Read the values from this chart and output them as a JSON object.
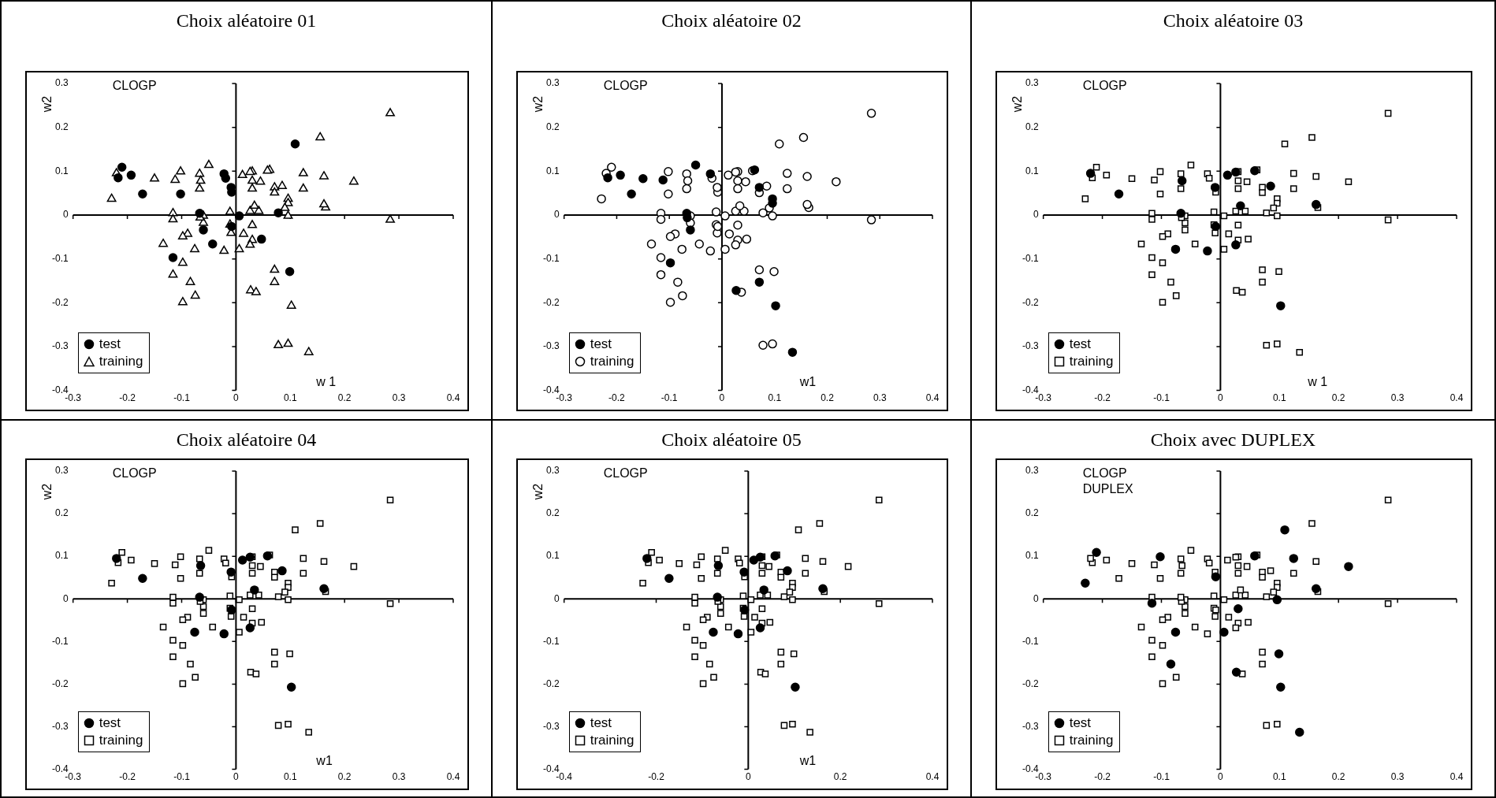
{
  "chart_data": [
    {
      "type": "scatter",
      "title": "Choix aléatoire 01",
      "xlabel": "w 1",
      "ylabel": "w2",
      "annotations": [
        "CLOGP"
      ],
      "legend": "bottom left",
      "xlim": [
        -0.3,
        0.4
      ],
      "xticks": [
        -0.3,
        -0.2,
        -0.1,
        0,
        0.1,
        0.2,
        0.3,
        0.4
      ],
      "ylim": [
        -0.4,
        0.3
      ],
      "yticks": [
        -0.4,
        -0.3,
        -0.2,
        -0.1,
        0,
        0.1,
        0.2,
        0.3
      ],
      "series": [
        {
          "name": "test",
          "marker": "circle",
          "color": "#000000",
          "x": [
            -0.217,
            -0.21,
            -0.193,
            -0.102,
            -0.022,
            -0.019,
            -0.008,
            0.109,
            0.078,
            -0.06,
            0.006,
            0.047,
            -0.043,
            -0.116,
            0.099,
            -0.172,
            -0.067,
            -0.009,
            -0.008
          ],
          "values": [
            0.085,
            0.109,
            0.091,
            0.048,
            0.094,
            0.084,
            0.052,
            0.162,
            0.005,
            -0.034,
            -0.002,
            -0.055,
            -0.066,
            -0.097,
            -0.129,
            0.048,
            0.004,
            0.063,
            -0.026
          ]
        },
        {
          "name": "training",
          "marker": "triangle",
          "color": "#ffffff",
          "x": [
            -0.229,
            -0.15,
            -0.112,
            -0.102,
            -0.067,
            -0.067,
            -0.05,
            0.03,
            0.03,
            0.03,
            0.045,
            0.062,
            0.071,
            0.071,
            0.124,
            0.124,
            0.155,
            0.162,
            0.217,
            0.284,
            0.284,
            0.096,
            0.096,
            0.09,
            0.096,
            0.165,
            0.042,
            0.026,
            -0.116,
            -0.116,
            -0.06,
            -0.06,
            -0.011,
            -0.011,
            -0.009,
            0.014,
            0.03,
            0.03,
            -0.089,
            -0.098,
            -0.134,
            0.006,
            -0.098,
            -0.116,
            -0.084,
            -0.075,
            -0.098,
            0.071,
            0.071,
            0.027,
            0.037,
            0.078,
            0.096,
            0.134,
            -0.066,
            -0.22,
            -0.065,
            0.012,
            0.026,
            0.058,
            0.085,
            0.034,
            0.162,
            -0.076,
            -0.022,
            0.026,
            0.102
          ],
          "values": [
            0.037,
            0.083,
            0.08,
            0.099,
            0.094,
            0.06,
            0.114,
            0.099,
            0.078,
            0.06,
            0.076,
            0.103,
            0.063,
            0.051,
            0.095,
            0.06,
            0.177,
            0.088,
            0.076,
            0.232,
            -0.011,
            0.037,
            0.027,
            0.016,
            -0.002,
            0.017,
            0.009,
            0.009,
            0.004,
            -0.01,
            -0.002,
            -0.018,
            0.007,
            -0.022,
            -0.041,
            -0.043,
            -0.023,
            -0.057,
            -0.043,
            -0.049,
            -0.066,
            -0.078,
            -0.109,
            -0.136,
            -0.153,
            -0.184,
            -0.199,
            -0.125,
            -0.153,
            -0.172,
            -0.176,
            -0.297,
            -0.294,
            -0.313,
            -0.006,
            0.095,
            0.078,
            0.091,
            0.098,
            0.101,
            0.066,
            0.021,
            0.024,
            -0.078,
            -0.082,
            -0.068,
            -0.207
          ]
        }
      ]
    },
    {
      "type": "scatter",
      "title": "Choix aléatoire 02",
      "xlabel": "w1",
      "ylabel": "w2",
      "annotations": [
        "CLOGP"
      ],
      "legend": "bottom left",
      "xlim": [
        -0.3,
        0.4
      ],
      "xticks": [
        -0.3,
        -0.2,
        -0.1,
        0,
        0.1,
        0.2,
        0.3,
        0.4
      ],
      "ylim": [
        -0.4,
        0.3
      ],
      "yticks": [
        -0.4,
        -0.3,
        -0.2,
        -0.1,
        0,
        0.1,
        0.2,
        0.3
      ],
      "series": [
        {
          "name": "test",
          "marker": "circle",
          "color": "#000000",
          "x": [
            -0.217,
            -0.193,
            -0.15,
            -0.112,
            -0.05,
            -0.022,
            0.062,
            0.071,
            0.096,
            0.096,
            -0.06,
            -0.098,
            0.071,
            0.027,
            0.134,
            -0.066,
            -0.172,
            -0.067,
            0.102
          ],
          "values": [
            0.085,
            0.091,
            0.083,
            0.08,
            0.114,
            0.094,
            0.103,
            0.063,
            0.037,
            0.027,
            -0.034,
            -0.109,
            -0.153,
            -0.172,
            -0.313,
            -0.006,
            0.048,
            0.004,
            -0.207
          ]
        },
        {
          "name": "training",
          "marker": "circle",
          "color": "#ffffff",
          "x": [
            -0.229,
            -0.21,
            -0.102,
            -0.102,
            -0.067,
            -0.067,
            -0.019,
            -0.008,
            0.03,
            0.03,
            0.03,
            0.045,
            0.071,
            0.109,
            0.124,
            0.124,
            0.155,
            0.162,
            0.217,
            0.284,
            0.284,
            0.09,
            0.078,
            0.096,
            0.165,
            0.042,
            0.026,
            -0.116,
            -0.116,
            -0.06,
            -0.06,
            -0.011,
            0.006,
            -0.011,
            -0.009,
            0.014,
            0.03,
            0.047,
            0.03,
            -0.089,
            -0.098,
            -0.134,
            -0.043,
            0.006,
            -0.116,
            -0.116,
            -0.084,
            -0.075,
            -0.098,
            0.071,
            0.099,
            0.037,
            0.078,
            0.096,
            -0.22,
            -0.065,
            -0.009,
            -0.008,
            0.012,
            0.026,
            0.058,
            0.085,
            0.034,
            0.162,
            -0.076,
            -0.022,
            0.026
          ],
          "values": [
            0.037,
            0.109,
            0.099,
            0.048,
            0.094,
            0.06,
            0.084,
            0.052,
            0.099,
            0.078,
            0.06,
            0.076,
            0.051,
            0.162,
            0.095,
            0.06,
            0.177,
            0.088,
            0.076,
            0.232,
            -0.011,
            0.016,
            0.005,
            -0.002,
            0.017,
            0.009,
            0.009,
            0.004,
            -0.01,
            -0.002,
            -0.018,
            0.007,
            -0.002,
            -0.022,
            -0.041,
            -0.043,
            -0.023,
            -0.055,
            -0.057,
            -0.043,
            -0.049,
            -0.066,
            -0.066,
            -0.078,
            -0.097,
            -0.136,
            -0.153,
            -0.184,
            -0.199,
            -0.125,
            -0.129,
            -0.176,
            -0.297,
            -0.294,
            0.095,
            0.078,
            0.063,
            -0.026,
            0.091,
            0.098,
            0.101,
            0.066,
            0.021,
            0.024,
            -0.078,
            -0.082,
            -0.068
          ]
        }
      ]
    },
    {
      "type": "scatter",
      "title": "Choix aléatoire 03",
      "xlabel": "w 1",
      "ylabel": "w2",
      "annotations": [
        "CLOGP"
      ],
      "legend": "bottom left",
      "xlim": [
        -0.3,
        0.4
      ],
      "xticks": [
        -0.3,
        -0.2,
        -0.1,
        0,
        0.1,
        0.2,
        0.3,
        0.4
      ],
      "ylim": [
        -0.4,
        0.3
      ],
      "yticks": [
        -0.4,
        -0.3,
        -0.2,
        -0.1,
        0,
        0.1,
        0.2,
        0.3
      ],
      "series": [
        {
          "name": "test",
          "marker": "circle",
          "color": "#000000",
          "x": [
            -0.22,
            -0.172,
            -0.065,
            -0.067,
            -0.009,
            -0.008,
            0.012,
            0.026,
            0.058,
            0.085,
            0.034,
            0.162,
            -0.076,
            -0.022,
            0.026,
            0.102
          ],
          "values": [
            0.095,
            0.048,
            0.078,
            0.004,
            0.063,
            -0.026,
            0.091,
            0.098,
            0.101,
            0.066,
            0.021,
            0.024,
            -0.078,
            -0.082,
            -0.068,
            -0.207
          ]
        },
        {
          "name": "training",
          "marker": "square",
          "color": "#ffffff",
          "x": [
            -0.229,
            -0.217,
            -0.21,
            -0.193,
            -0.15,
            -0.112,
            -0.102,
            -0.102,
            -0.067,
            -0.067,
            -0.05,
            -0.022,
            -0.019,
            -0.008,
            0.03,
            0.03,
            0.03,
            0.045,
            0.062,
            0.071,
            0.071,
            0.109,
            0.124,
            0.124,
            0.155,
            0.162,
            0.217,
            0.284,
            0.284,
            0.096,
            0.096,
            0.09,
            0.078,
            0.096,
            0.165,
            0.042,
            0.026,
            -0.116,
            -0.116,
            -0.06,
            -0.06,
            -0.06,
            -0.011,
            0.006,
            -0.011,
            -0.009,
            0.014,
            0.03,
            0.047,
            0.03,
            -0.089,
            -0.098,
            -0.134,
            -0.043,
            0.006,
            -0.116,
            -0.098,
            -0.116,
            -0.084,
            -0.075,
            -0.098,
            0.071,
            0.099,
            0.071,
            0.027,
            0.037,
            0.078,
            0.096,
            0.134,
            -0.066
          ],
          "values": [
            0.037,
            0.085,
            0.109,
            0.091,
            0.083,
            0.08,
            0.099,
            0.048,
            0.094,
            0.06,
            0.114,
            0.094,
            0.084,
            0.052,
            0.099,
            0.078,
            0.06,
            0.076,
            0.103,
            0.063,
            0.051,
            0.162,
            0.095,
            0.06,
            0.177,
            0.088,
            0.076,
            0.232,
            -0.011,
            0.037,
            0.027,
            0.016,
            0.005,
            -0.002,
            0.017,
            0.009,
            0.009,
            0.004,
            -0.01,
            -0.002,
            -0.018,
            -0.034,
            0.007,
            -0.002,
            -0.022,
            -0.041,
            -0.043,
            -0.023,
            -0.055,
            -0.057,
            -0.043,
            -0.049,
            -0.066,
            -0.066,
            -0.078,
            -0.097,
            -0.109,
            -0.136,
            -0.153,
            -0.184,
            -0.199,
            -0.125,
            -0.129,
            -0.153,
            -0.172,
            -0.176,
            -0.297,
            -0.294,
            -0.313,
            -0.006
          ]
        }
      ]
    },
    {
      "type": "scatter",
      "title": "Choix aléatoire 04",
      "xlabel": "w1",
      "ylabel": "w2",
      "annotations": [
        "CLOGP"
      ],
      "legend": "bottom left",
      "xlim": [
        -0.3,
        0.4
      ],
      "xticks": [
        -0.3,
        -0.2,
        -0.1,
        0,
        0.1,
        0.2,
        0.3,
        0.4
      ],
      "ylim": [
        -0.4,
        0.3
      ],
      "yticks": [
        -0.4,
        -0.3,
        -0.2,
        -0.1,
        0,
        0.1,
        0.2,
        0.3
      ],
      "series": [
        {
          "name": "test",
          "marker": "circle",
          "color": "#000000",
          "x": [
            -0.22,
            -0.172,
            -0.065,
            -0.067,
            -0.009,
            -0.008,
            0.012,
            0.026,
            0.058,
            0.085,
            0.034,
            0.162,
            -0.076,
            -0.022,
            0.026,
            0.102
          ],
          "values": [
            0.095,
            0.048,
            0.078,
            0.004,
            0.063,
            -0.026,
            0.091,
            0.098,
            0.101,
            0.066,
            0.021,
            0.024,
            -0.078,
            -0.082,
            -0.068,
            -0.207
          ]
        },
        {
          "name": "training",
          "marker": "square",
          "color": "#ffffff",
          "x": [
            -0.229,
            -0.217,
            -0.21,
            -0.193,
            -0.15,
            -0.112,
            -0.102,
            -0.102,
            -0.067,
            -0.067,
            -0.05,
            -0.022,
            -0.019,
            -0.008,
            0.03,
            0.03,
            0.03,
            0.045,
            0.062,
            0.071,
            0.071,
            0.109,
            0.124,
            0.124,
            0.155,
            0.162,
            0.217,
            0.284,
            0.284,
            0.096,
            0.096,
            0.09,
            0.078,
            0.096,
            0.165,
            0.042,
            0.026,
            -0.116,
            -0.116,
            -0.06,
            -0.06,
            -0.06,
            -0.011,
            0.006,
            -0.011,
            -0.009,
            0.014,
            0.03,
            0.047,
            0.03,
            -0.089,
            -0.098,
            -0.134,
            -0.043,
            0.006,
            -0.116,
            -0.098,
            -0.116,
            -0.084,
            -0.075,
            -0.098,
            0.071,
            0.099,
            0.071,
            0.027,
            0.037,
            0.078,
            0.096,
            0.134,
            -0.066
          ],
          "values": [
            0.037,
            0.085,
            0.109,
            0.091,
            0.083,
            0.08,
            0.099,
            0.048,
            0.094,
            0.06,
            0.114,
            0.094,
            0.084,
            0.052,
            0.099,
            0.078,
            0.06,
            0.076,
            0.103,
            0.063,
            0.051,
            0.162,
            0.095,
            0.06,
            0.177,
            0.088,
            0.076,
            0.232,
            -0.011,
            0.037,
            0.027,
            0.016,
            0.005,
            -0.002,
            0.017,
            0.009,
            0.009,
            0.004,
            -0.01,
            -0.002,
            -0.018,
            -0.034,
            0.007,
            -0.002,
            -0.022,
            -0.041,
            -0.043,
            -0.023,
            -0.055,
            -0.057,
            -0.043,
            -0.049,
            -0.066,
            -0.066,
            -0.078,
            -0.097,
            -0.109,
            -0.136,
            -0.153,
            -0.184,
            -0.199,
            -0.125,
            -0.129,
            -0.153,
            -0.172,
            -0.176,
            -0.297,
            -0.294,
            -0.313,
            -0.006
          ]
        }
      ]
    },
    {
      "type": "scatter",
      "title": "Choix aléatoire 05",
      "xlabel": "w1",
      "ylabel": "w2",
      "annotations": [
        "CLOGP"
      ],
      "legend": "bottom left",
      "xlim": [
        -0.4,
        0.4
      ],
      "xticks": [
        -0.4,
        -0.2,
        0,
        0.2,
        0.4
      ],
      "ylim": [
        -0.4,
        0.3
      ],
      "yticks": [
        -0.4,
        -0.3,
        -0.2,
        -0.1,
        0,
        0.1,
        0.2,
        0.3
      ],
      "series": [
        {
          "name": "test",
          "marker": "circle",
          "color": "#000000",
          "x": [
            -0.22,
            -0.172,
            -0.065,
            -0.067,
            -0.009,
            -0.008,
            0.012,
            0.026,
            0.058,
            0.085,
            0.034,
            0.162,
            -0.076,
            -0.022,
            0.026,
            0.102
          ],
          "values": [
            0.095,
            0.048,
            0.078,
            0.004,
            0.063,
            -0.026,
            0.091,
            0.098,
            0.101,
            0.066,
            0.021,
            0.024,
            -0.078,
            -0.082,
            -0.068,
            -0.207
          ]
        },
        {
          "name": "training",
          "marker": "square",
          "color": "#ffffff",
          "x": [
            -0.229,
            -0.217,
            -0.21,
            -0.193,
            -0.15,
            -0.112,
            -0.102,
            -0.102,
            -0.067,
            -0.067,
            -0.05,
            -0.022,
            -0.019,
            -0.008,
            0.03,
            0.03,
            0.03,
            0.045,
            0.062,
            0.071,
            0.071,
            0.109,
            0.124,
            0.124,
            0.155,
            0.162,
            0.217,
            0.284,
            0.284,
            0.096,
            0.096,
            0.09,
            0.078,
            0.096,
            0.165,
            0.042,
            0.026,
            -0.116,
            -0.116,
            -0.06,
            -0.06,
            -0.06,
            -0.011,
            0.006,
            -0.011,
            -0.009,
            0.014,
            0.03,
            0.047,
            0.03,
            -0.089,
            -0.098,
            -0.134,
            -0.043,
            0.006,
            -0.116,
            -0.098,
            -0.116,
            -0.084,
            -0.075,
            -0.098,
            0.071,
            0.099,
            0.071,
            0.027,
            0.037,
            0.078,
            0.096,
            0.134,
            -0.066
          ],
          "values": [
            0.037,
            0.085,
            0.109,
            0.091,
            0.083,
            0.08,
            0.099,
            0.048,
            0.094,
            0.06,
            0.114,
            0.094,
            0.084,
            0.052,
            0.099,
            0.078,
            0.06,
            0.076,
            0.103,
            0.063,
            0.051,
            0.162,
            0.095,
            0.06,
            0.177,
            0.088,
            0.076,
            0.232,
            -0.011,
            0.037,
            0.027,
            0.016,
            0.005,
            -0.002,
            0.017,
            0.009,
            0.009,
            0.004,
            -0.01,
            -0.002,
            -0.018,
            -0.034,
            0.007,
            -0.002,
            -0.022,
            -0.041,
            -0.043,
            -0.023,
            -0.055,
            -0.057,
            -0.043,
            -0.049,
            -0.066,
            -0.066,
            -0.078,
            -0.097,
            -0.109,
            -0.136,
            -0.153,
            -0.184,
            -0.199,
            -0.125,
            -0.129,
            -0.153,
            -0.172,
            -0.176,
            -0.297,
            -0.294,
            -0.313,
            -0.006
          ]
        }
      ]
    },
    {
      "type": "scatter",
      "title": "Choix avec DUPLEX",
      "annotations": [
        "CLOGP",
        "DUPLEX"
      ],
      "legend": "bottom left",
      "xlim": [
        -0.3,
        0.4
      ],
      "xticks": [
        -0.3,
        -0.2,
        -0.1,
        0,
        0.1,
        0.2,
        0.3,
        0.4
      ],
      "ylim": [
        -0.4,
        0.3
      ],
      "yticks": [
        -0.4,
        -0.3,
        -0.2,
        -0.1,
        0,
        0.1,
        0.2,
        0.3
      ],
      "series": [
        {
          "name": "test",
          "marker": "circle",
          "color": "#000000",
          "x": [
            -0.229,
            -0.21,
            -0.102,
            -0.008,
            0.109,
            0.124,
            0.217,
            0.096,
            -0.116,
            0.03,
            0.006,
            -0.084,
            0.099,
            0.027,
            0.134,
            0.058,
            0.162,
            -0.076,
            0.102
          ],
          "values": [
            0.037,
            0.109,
            0.099,
            0.052,
            0.162,
            0.095,
            0.076,
            -0.002,
            -0.01,
            -0.023,
            -0.078,
            -0.153,
            -0.129,
            -0.172,
            -0.313,
            0.101,
            0.024,
            -0.078,
            -0.207
          ]
        },
        {
          "name": "training",
          "marker": "square",
          "color": "#ffffff",
          "x": [
            -0.217,
            -0.193,
            -0.15,
            -0.112,
            -0.102,
            -0.067,
            -0.067,
            -0.05,
            -0.022,
            -0.019,
            0.03,
            0.03,
            0.03,
            0.045,
            0.062,
            0.071,
            0.071,
            0.124,
            0.155,
            0.162,
            0.284,
            0.284,
            0.096,
            0.096,
            0.09,
            0.078,
            0.165,
            0.042,
            0.026,
            -0.116,
            -0.06,
            -0.06,
            -0.06,
            -0.011,
            0.006,
            -0.011,
            -0.009,
            0.014,
            0.047,
            0.03,
            -0.089,
            -0.098,
            -0.134,
            -0.043,
            -0.116,
            -0.098,
            -0.116,
            -0.075,
            -0.098,
            0.071,
            0.071,
            0.037,
            0.078,
            0.096,
            -0.066,
            -0.22,
            -0.172,
            -0.065,
            -0.067,
            -0.009,
            -0.008,
            0.012,
            0.026,
            0.085,
            0.034,
            -0.022,
            0.026
          ],
          "values": [
            0.085,
            0.091,
            0.083,
            0.08,
            0.048,
            0.094,
            0.06,
            0.114,
            0.094,
            0.084,
            0.099,
            0.078,
            0.06,
            0.076,
            0.103,
            0.063,
            0.051,
            0.06,
            0.177,
            0.088,
            0.232,
            -0.011,
            0.037,
            0.027,
            0.016,
            0.005,
            0.017,
            0.009,
            0.009,
            0.004,
            -0.002,
            -0.018,
            -0.034,
            0.007,
            -0.002,
            -0.022,
            -0.041,
            -0.043,
            -0.055,
            -0.057,
            -0.043,
            -0.049,
            -0.066,
            -0.066,
            -0.097,
            -0.109,
            -0.136,
            -0.184,
            -0.199,
            -0.125,
            -0.153,
            -0.176,
            -0.297,
            -0.294,
            -0.006,
            0.095,
            0.048,
            0.078,
            0.004,
            0.063,
            -0.026,
            0.091,
            0.098,
            0.066,
            0.021,
            -0.082,
            -0.068
          ]
        }
      ]
    }
  ]
}
